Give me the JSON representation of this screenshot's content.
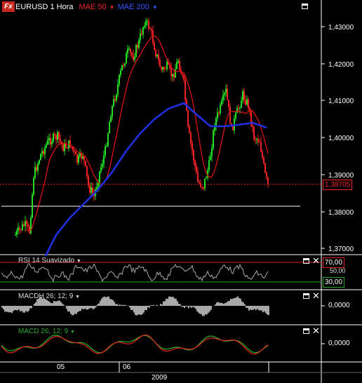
{
  "app": {
    "logo_text": "Fx",
    "symbol_title": "EURUSD 1 Hora",
    "ma1_label": "MAE 50",
    "ma2_label": "MAE 200"
  },
  "colors": {
    "up_candle": "#22dd22",
    "down_candle": "#ee2222",
    "ma1": "#dd1111",
    "ma2": "#1f2fe0",
    "current_price_line": "#ee2222",
    "support_line": "#ffffff",
    "rsi_line": "#aaaaaa",
    "rsi_upper_line": "#dd2222",
    "rsi_lower_line": "#22aa22",
    "macd_line": "#22aa22",
    "macd_signal": "#dd2222",
    "macdh_bar": "#bbbbbb"
  },
  "price_axis": {
    "ticks": [
      "1,43000",
      "1,42000",
      "1,41000",
      "1,40000",
      "1,39000",
      "1,38000",
      "1,37000"
    ],
    "current_price": "1,38705"
  },
  "rsi_panel": {
    "label": "RSI 14 Suavizado",
    "level_upper": "70,00",
    "level_mid": "50,00",
    "level_lower": "30,00"
  },
  "macdh_panel": {
    "label": "MACDH 26; 12; 9",
    "zero_label": "0,0000"
  },
  "macd_panel": {
    "label": "MACD 26; 12; 9",
    "zero_label": "0,0000"
  },
  "time_axis": {
    "labels": [
      "05",
      "06"
    ],
    "year": "2009"
  }
}
